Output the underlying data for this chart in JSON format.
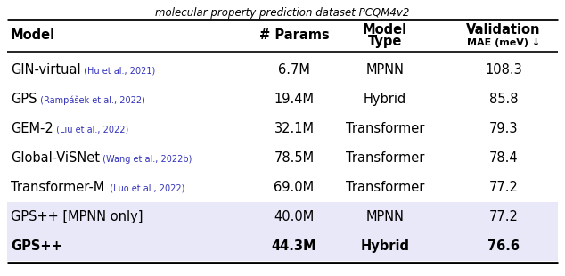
{
  "title_top": "molecular property prediction dataset PCQM4v2",
  "rows": [
    {
      "model_main": "GIN-virtual",
      "model_cite": " (Hu et al., 2021)",
      "params": "6.7M",
      "type": "MPNN",
      "mae": "108.3",
      "bold": false,
      "highlight": false
    },
    {
      "model_main": "GPS",
      "model_cite": " (Rampášek et al., 2022)",
      "params": "19.4M",
      "type": "Hybrid",
      "mae": "85.8",
      "bold": false,
      "highlight": false
    },
    {
      "model_main": "GEM-2",
      "model_cite": " (Liu et al., 2022)",
      "params": "32.1M",
      "type": "Transformer",
      "mae": "79.3",
      "bold": false,
      "highlight": false
    },
    {
      "model_main": "Global-ViSNet",
      "model_cite": " (Wang et al., 2022b)",
      "params": "78.5M",
      "type": "Transformer",
      "mae": "78.4",
      "bold": false,
      "highlight": false
    },
    {
      "model_main": "Transformer-M",
      "model_cite": "  (Luo et al., 2022)",
      "params": "69.0M",
      "type": "Transformer",
      "mae": "77.2",
      "bold": false,
      "highlight": false
    },
    {
      "model_main": "GPS++ [MPNN only]",
      "model_cite": "",
      "params": "40.0M",
      "type": "MPNN",
      "mae": "77.2",
      "bold": false,
      "highlight": true
    },
    {
      "model_main": "GPS++",
      "model_cite": "",
      "params": "44.3M",
      "type": "Hybrid",
      "mae": "76.6",
      "bold": true,
      "highlight": true
    }
  ],
  "highlight_color": "#e8e8f8",
  "bg_color": "#ffffff",
  "cite_color": "#3333bb",
  "cite_fontsize": 7.0,
  "main_fontsize": 10.5,
  "header_fontsize": 10.5,
  "title_fontsize": 8.5
}
